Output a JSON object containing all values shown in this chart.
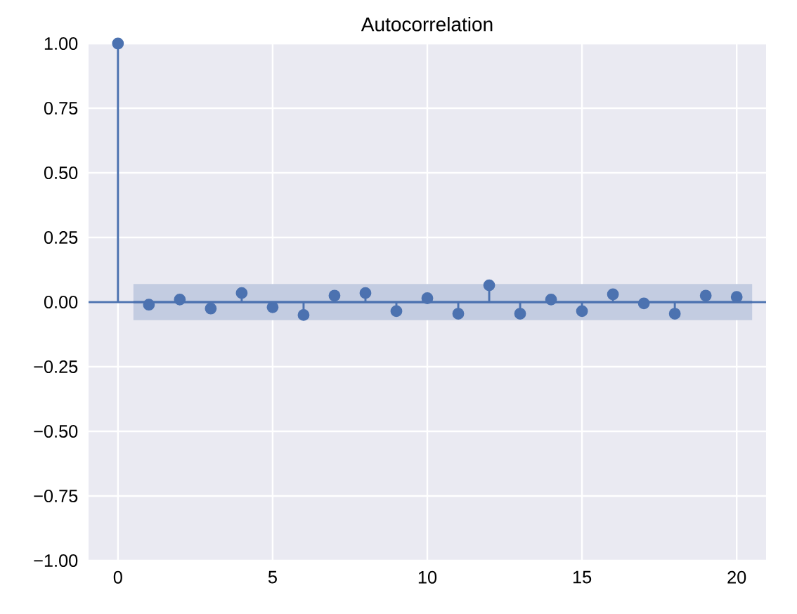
{
  "chart_data": {
    "type": "lollipop",
    "title": "Autocorrelation",
    "grid": true,
    "xlim": [
      -0.95,
      20.95
    ],
    "ylim": [
      -1,
      1
    ],
    "xticks": [
      0,
      5,
      10,
      15,
      20
    ],
    "yticks": [
      {
        "value": -1,
        "label": "−1.00"
      },
      {
        "value": -0.75,
        "label": "−0.75"
      },
      {
        "value": -0.5,
        "label": "−0.50"
      },
      {
        "value": -0.25,
        "label": "−0.25"
      },
      {
        "value": 0,
        "label": "0.00"
      },
      {
        "value": 0.25,
        "label": "0.25"
      },
      {
        "value": 0.5,
        "label": "0.50"
      },
      {
        "value": 0.75,
        "label": "0.75"
      },
      {
        "value": 1,
        "label": "1.00"
      }
    ],
    "ref_lines": [
      {
        "axis": "y",
        "value": 0,
        "color": "#4c72b0"
      }
    ],
    "series": [
      {
        "type": "line",
        "marker": "none",
        "x": [
          0.5,
          20.5
        ],
        "values": [
          0,
          0
        ],
        "lower": [
          -0.07,
          -0.07
        ],
        "upper": [
          0.07,
          0.07
        ],
        "color": "#4c72b0"
      },
      {
        "marker": "circle",
        "color": "#4c72b0",
        "x": [
          0,
          1,
          2,
          3,
          4,
          5,
          6,
          7,
          8,
          9,
          10,
          11,
          12,
          13,
          14,
          15,
          16,
          17,
          18,
          19,
          20
        ],
        "values": [
          1.0,
          -0.01,
          0.01,
          -0.025,
          0.035,
          -0.02,
          -0.05,
          0.025,
          0.035,
          -0.035,
          0.015,
          -0.045,
          0.065,
          -0.045,
          0.01,
          -0.035,
          0.03,
          -0.005,
          -0.045,
          0.025,
          0.02
        ]
      }
    ]
  }
}
